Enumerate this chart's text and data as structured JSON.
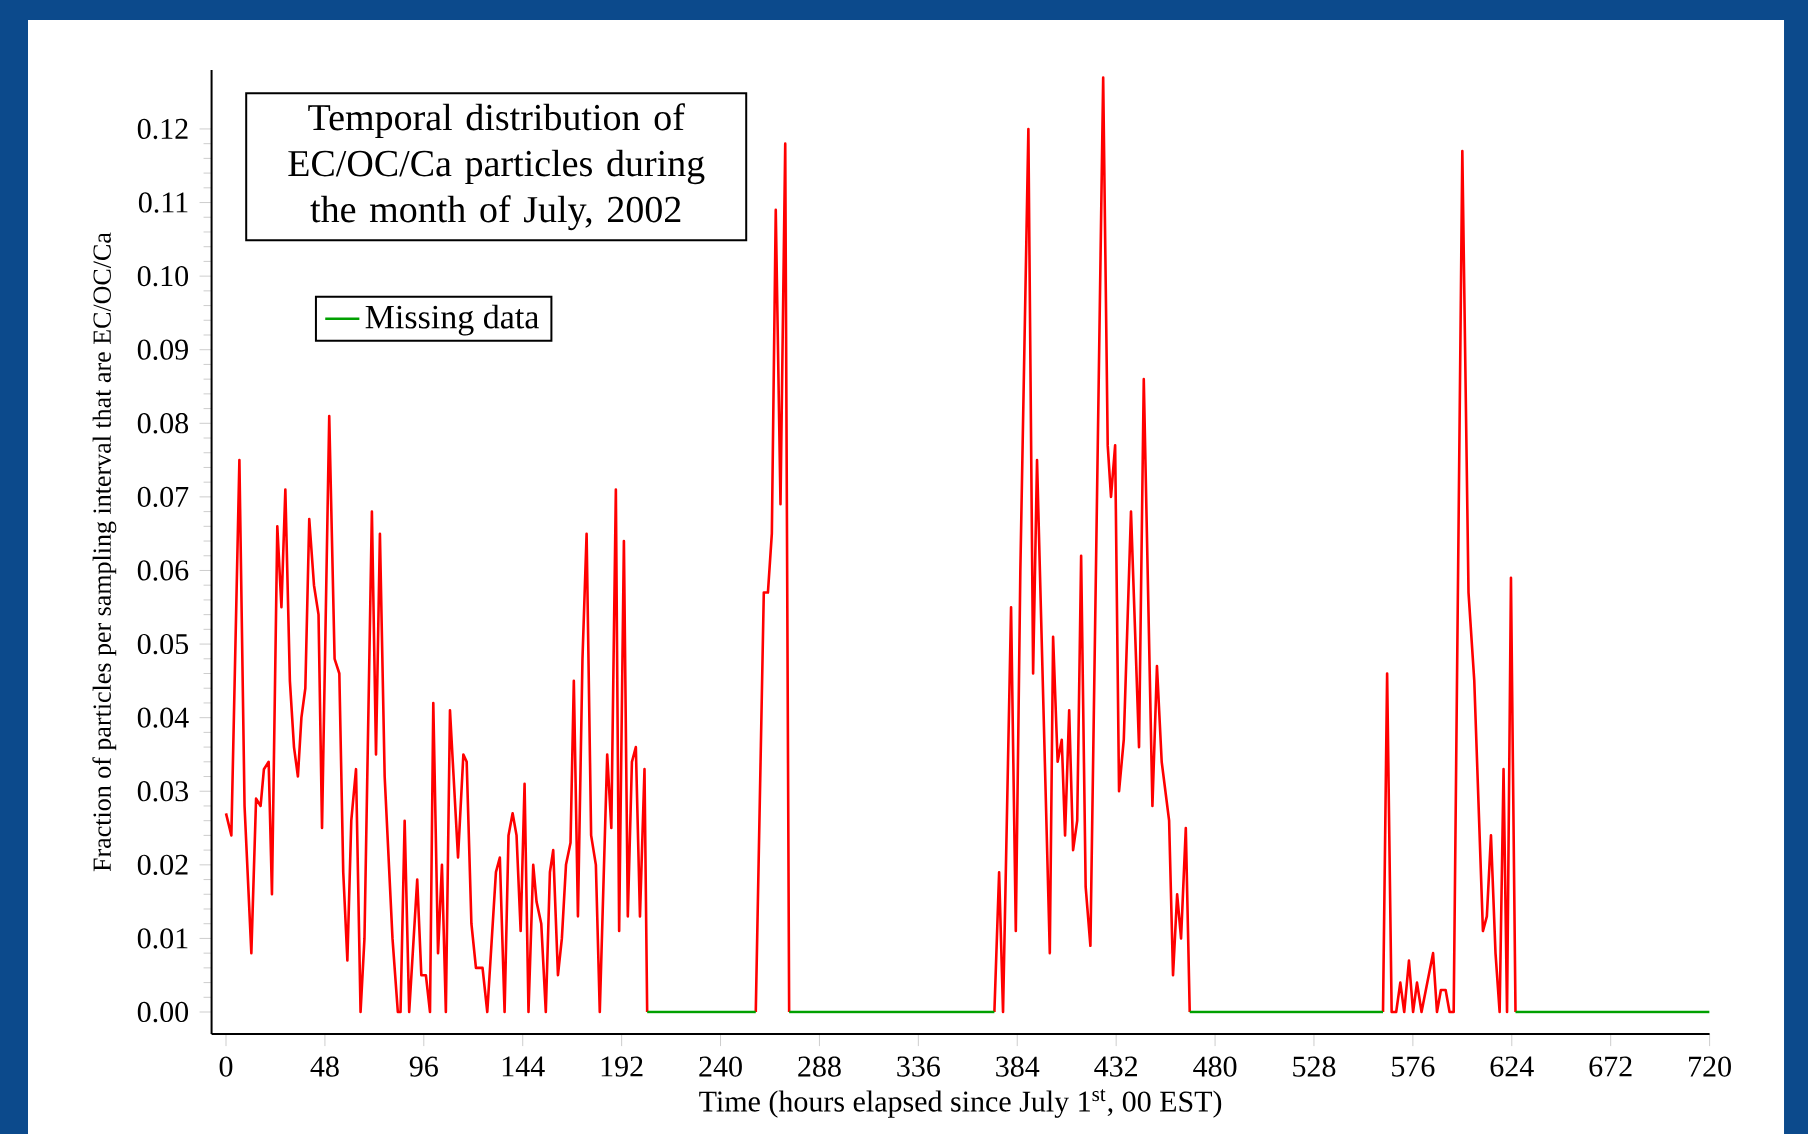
{
  "chart_data": {
    "type": "line",
    "title": "Temporal distribution of EC/OC/Ca particles during the month of July, 2002",
    "xlabel": "Time (hours elapsed since July 1$^{st}$, 00 EST)",
    "ylabel": "Fraction of particles per sampling interval that are EC/OC/Ca",
    "xlim": [
      -7,
      720
    ],
    "ylim": [
      -0.003,
      0.128
    ],
    "xticks": [
      0,
      48,
      96,
      144,
      192,
      240,
      288,
      336,
      384,
      432,
      480,
      528,
      576,
      624,
      672,
      720
    ],
    "yticks": [
      {
        "value": 0,
        "label": "0.00"
      },
      {
        "value": 0.01,
        "label": "0.01"
      },
      {
        "value": 0.02,
        "label": "0.02"
      },
      {
        "value": 0.03,
        "label": "0.03"
      },
      {
        "value": 0.04,
        "label": "0.04"
      },
      {
        "value": 0.05,
        "label": "0.05"
      },
      {
        "value": 0.06,
        "label": "0.06"
      },
      {
        "value": 0.07,
        "label": "0.07"
      },
      {
        "value": 0.08,
        "label": "0.08"
      },
      {
        "value": 0.09,
        "label": "0.09"
      },
      {
        "value": 0.1,
        "label": "0.10"
      },
      {
        "value": 0.11,
        "label": "0.11"
      },
      {
        "value": 0.12,
        "label": "0.12"
      }
    ],
    "legend": "top left",
    "series": [
      {
        "color": "#ff0000",
        "x": [
          0,
          2.6,
          6.5,
          9,
          12.3,
          14.6,
          16.8,
          18.4,
          20.7,
          22.3,
          24.9,
          26.9,
          28.8,
          31,
          33,
          34.9,
          36.6,
          38.5,
          40.4,
          42.7,
          44.9,
          46.6,
          50.1,
          52.7,
          55,
          56.9,
          58.9,
          60.8,
          63.1,
          65.3,
          67.2,
          70.8,
          72.8,
          74.7,
          77,
          80.8,
          83.4,
          84.7,
          86.7,
          88.9,
          92.8,
          94.8,
          97,
          99,
          100.6,
          102.9,
          104.8,
          106.7,
          108.7,
          112.6,
          115.2,
          116.8,
          119.1,
          121.3,
          124.5,
          126.8,
          131,
          132.9,
          135.2,
          137.1,
          139.1,
          141,
          143,
          144.9,
          146.8,
          149.1,
          150.7,
          153,
          155.2,
          157.2,
          158.8,
          161.1,
          163,
          165,
          167.2,
          168.8,
          170.8,
          173,
          175,
          177.2,
          179.5,
          181.4,
          185,
          187,
          189.2,
          190.8,
          193.1,
          195,
          197,
          198.9,
          200.9,
          203.1,
          204.4,
          230,
          257.1,
          261,
          263,
          264.9,
          266.8,
          269.1,
          271.4,
          273.3,
          323,
          372.9,
          375.2,
          377.1,
          381,
          383.3,
          385.5,
          389.4,
          391.7,
          393.6,
          399.8,
          401.4,
          403.6,
          405.6,
          407.2,
          409.2,
          411.1,
          413.1,
          415,
          417.2,
          419.5,
          425.7,
          427.9,
          429.5,
          431.5,
          433.4,
          435.7,
          439.2,
          443.1,
          445.4,
          449.6,
          451.8,
          454.1,
          457.7,
          459.6,
          461.6,
          463.5,
          465.8,
          467.7,
          514,
          561.5,
          563.5,
          565.7,
          567.9,
          569.9,
          571.8,
          574.1,
          576.1,
          578,
          580.2,
          585.8,
          587.7,
          589.6,
          591.9,
          593.8,
          595.8,
          600,
          603,
          605.8,
          610,
          611.9,
          613.9,
          616.1,
          618.1,
          620,
          621.7,
          623.6,
          625.8
        ],
        "values": [
          0.027,
          0.024,
          0.075,
          0.028,
          0.008,
          0.029,
          0.028,
          0.033,
          0.034,
          0.016,
          0.066,
          0.055,
          0.071,
          0.045,
          0.036,
          0.032,
          0.04,
          0.044,
          0.067,
          0.058,
          0.054,
          0.025,
          0.081,
          0.048,
          0.046,
          0.019,
          0.007,
          0.026,
          0.033,
          0,
          0.01,
          0.068,
          0.035,
          0.065,
          0.032,
          0.01,
          0,
          0,
          0.026,
          0,
          0.018,
          0.005,
          0.005,
          0,
          0.042,
          0.008,
          0.02,
          0,
          0.041,
          0.021,
          0.035,
          0.034,
          0.012,
          0.006,
          0.006,
          0,
          0.019,
          0.021,
          0,
          0.024,
          0.027,
          0.024,
          0.011,
          0.031,
          0,
          0.02,
          0.015,
          0.012,
          0,
          0.019,
          0.022,
          0.005,
          0.01,
          0.02,
          0.023,
          0.045,
          0.013,
          0.048,
          0.065,
          0.024,
          0.02,
          0,
          0.035,
          0.025,
          0.071,
          0.011,
          0.064,
          0.013,
          0.034,
          0.036,
          0.013,
          0.033,
          0,
          null,
          0,
          0.057,
          0.057,
          0.065,
          0.109,
          0.069,
          0.118,
          0,
          null,
          0,
          0.019,
          0,
          0.055,
          0.011,
          0.06,
          0.12,
          0.046,
          0.075,
          0.008,
          0.051,
          0.034,
          0.037,
          0.024,
          0.041,
          0.022,
          0.026,
          0.062,
          0.017,
          0.009,
          0.127,
          0.077,
          0.07,
          0.077,
          0.03,
          0.037,
          0.068,
          0.036,
          0.086,
          0.028,
          0.047,
          0.034,
          0.026,
          0.005,
          0.016,
          0.01,
          0.025,
          0,
          null,
          0,
          0.046,
          0,
          0,
          0.004,
          0,
          0.007,
          0,
          0.004,
          0,
          0.008,
          0,
          0.003,
          0.003,
          0,
          0,
          0.117,
          0.057,
          0.045,
          0.011,
          0.013,
          0.024,
          0.008,
          0,
          0.033,
          0,
          0.059,
          0
        ]
      },
      {
        "name": "Missing data",
        "color": "#00a000",
        "x": [
          204.4,
          257.1,
          265,
          273.3,
          372.9,
          420,
          467.7,
          561.5,
          590,
          625.8,
          720
        ],
        "values": [
          0,
          0,
          null,
          0,
          0,
          null,
          0,
          0,
          null,
          0,
          0
        ]
      }
    ]
  }
}
